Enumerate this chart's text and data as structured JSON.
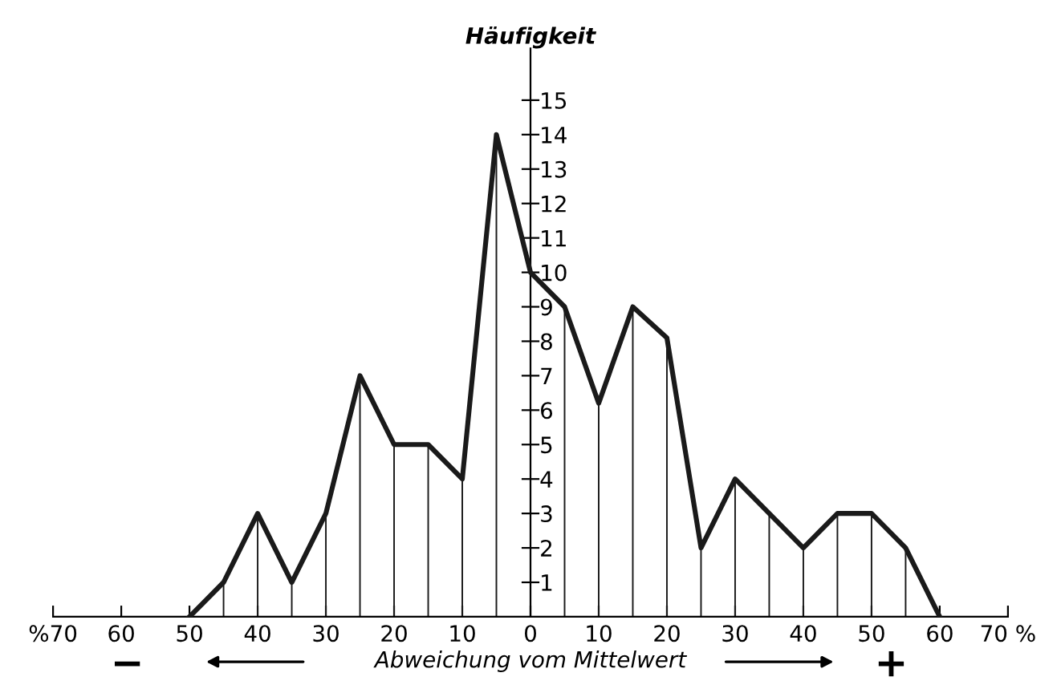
{
  "chart_data": {
    "type": "line",
    "xlabel": "Abweichung vom Mittelwert",
    "ylabel": "Häufigkeit",
    "x": [
      -50,
      -45,
      -40,
      -35,
      -30,
      -25,
      -20,
      -15,
      -10,
      -5,
      0,
      5,
      10,
      15,
      20,
      25,
      30,
      35,
      40,
      45,
      50,
      55,
      60
    ],
    "series": [
      {
        "color": "#1a1a1a",
        "values": [
          0,
          1,
          3,
          1,
          3,
          7,
          5,
          5,
          4,
          14,
          10,
          9,
          6.2,
          9,
          8.1,
          2,
          4,
          3,
          2,
          3,
          3,
          2,
          0
        ],
        "errors": [
          null,
          [
            0,
            1
          ],
          [
            0,
            3
          ],
          [
            0,
            1
          ],
          [
            0,
            3
          ],
          [
            0,
            7
          ],
          [
            0,
            5
          ],
          [
            0,
            5
          ],
          [
            0,
            4
          ],
          [
            0,
            14
          ],
          [
            0,
            10
          ],
          [
            0,
            9
          ],
          [
            0,
            6.2
          ],
          [
            0,
            9
          ],
          [
            0,
            8.1
          ],
          [
            0,
            2
          ],
          [
            0,
            4
          ],
          [
            0,
            3
          ],
          [
            0,
            2
          ],
          [
            0,
            3
          ],
          [
            0,
            3
          ],
          [
            0,
            2
          ],
          null
        ]
      }
    ],
    "xlim": [
      -70,
      70
    ],
    "ylim": [
      0,
      16.5
    ],
    "xticks": [
      {
        "value": -70,
        "label": "%70"
      },
      {
        "value": -60,
        "label": "60"
      },
      {
        "value": -50,
        "label": "50"
      },
      {
        "value": -40,
        "label": "40"
      },
      {
        "value": -30,
        "label": "30"
      },
      {
        "value": -20,
        "label": "20"
      },
      {
        "value": -10,
        "label": "10"
      },
      0,
      10,
      20,
      30,
      40,
      50,
      60,
      {
        "value": 70,
        "label": "70 %"
      }
    ],
    "yticks": [
      1,
      2,
      3,
      4,
      5,
      6,
      7,
      8,
      9,
      10,
      11,
      12,
      13,
      14,
      15
    ],
    "grid": false,
    "legend": false,
    "marker": "none",
    "line_style": "solid",
    "annotations": [
      "−",
      "+"
    ]
  }
}
